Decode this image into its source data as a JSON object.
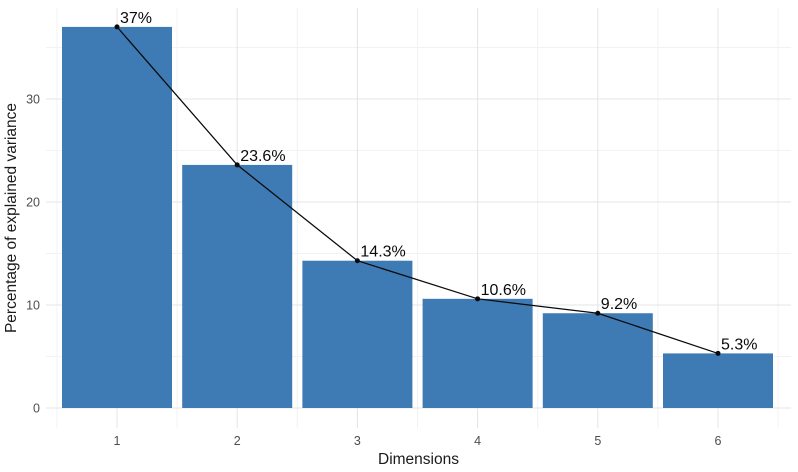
{
  "chart_data": {
    "type": "bar",
    "subtype": "scree-plot-with-line-overlay",
    "title": "",
    "categories": [
      "1",
      "2",
      "3",
      "4",
      "5",
      "6"
    ],
    "series": [
      {
        "name": "explained-variance-bars",
        "type": "bar",
        "values": [
          37,
          23.6,
          14.3,
          10.6,
          9.2,
          5.3
        ]
      },
      {
        "name": "explained-variance-line",
        "type": "line+point",
        "values": [
          37,
          23.6,
          14.3,
          10.6,
          9.2,
          5.3
        ]
      }
    ],
    "point_labels": [
      "37%",
      "23.6%",
      "14.3%",
      "10.6%",
      "9.2%",
      "5.3%"
    ],
    "xlabel": "Dimensions",
    "ylabel": "Percentage of explained variance",
    "yticks": [
      0,
      10,
      20,
      30
    ],
    "yticks_minor": [
      5,
      15,
      25,
      35
    ],
    "ylim": [
      0,
      38.9
    ],
    "legend": "none",
    "grid": {
      "horizontal": "major+minor",
      "vertical": "major+minor",
      "background": "white"
    },
    "colors": {
      "bar_fill": "#3E7AB3",
      "line": "#0A0A0A",
      "point": "#0A0A0A",
      "label_text": "#0A0A0A",
      "grid_major": "#E4E4E4",
      "grid_minor": "#F2F2F2",
      "tick_label": "#4D4D4D",
      "axis_title": "#1A1A1A",
      "background": "#FFFFFF"
    }
  }
}
